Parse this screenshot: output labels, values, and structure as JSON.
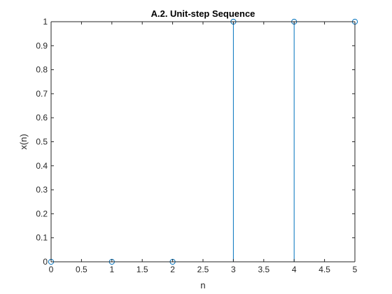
{
  "chart_data": {
    "type": "stem",
    "title": "A.2. Unit-step Sequence",
    "xlabel": "n",
    "ylabel": "x(n)",
    "xlim": [
      0,
      5
    ],
    "ylim": [
      0,
      1
    ],
    "xticks": [
      0,
      0.5,
      1,
      1.5,
      2,
      2.5,
      3,
      3.5,
      4,
      4.5,
      5
    ],
    "xtick_labels": [
      "0",
      "0.5",
      "1",
      "1.5",
      "2",
      "2.5",
      "3",
      "3.5",
      "4",
      "4.5",
      "5"
    ],
    "yticks": [
      0,
      0.1,
      0.2,
      0.3,
      0.4,
      0.5,
      0.6,
      0.7,
      0.8,
      0.9,
      1
    ],
    "ytick_labels": [
      "0",
      "0.1",
      "0.2",
      "0.3",
      "0.4",
      "0.5",
      "0.6",
      "0.7",
      "0.8",
      "0.9",
      "1"
    ],
    "grid": false,
    "series": [
      {
        "x": [
          0,
          1,
          2,
          3,
          4,
          5
        ],
        "values": [
          0,
          0,
          0,
          1,
          1,
          1
        ],
        "color": "#0072bd",
        "marker": "circle"
      }
    ]
  }
}
